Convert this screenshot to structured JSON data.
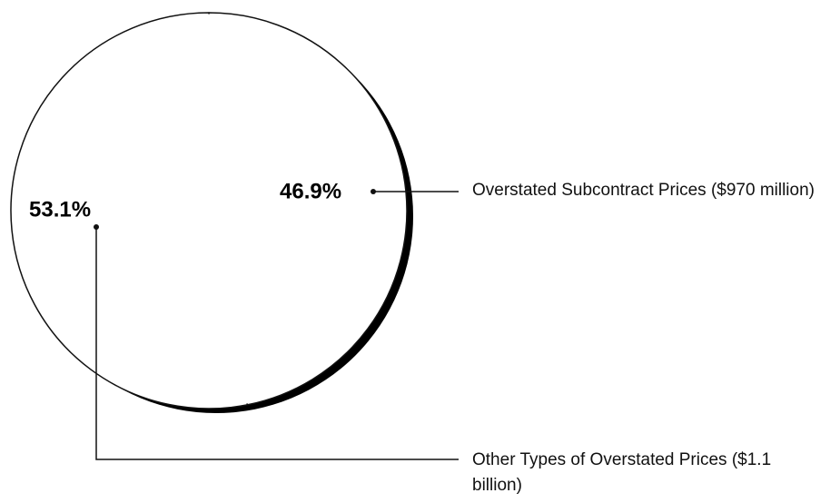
{
  "chart_data": {
    "type": "pie",
    "categories": [
      "Overstated Subcontract Prices ($970 million)",
      "Other Types of Overstated Prices ($1.1 billion)"
    ],
    "values": [
      46.9,
      53.1
    ],
    "value_labels": [
      "46.9%",
      "53.1%"
    ],
    "colors": [
      "#ffffff",
      "#ffffff"
    ]
  }
}
